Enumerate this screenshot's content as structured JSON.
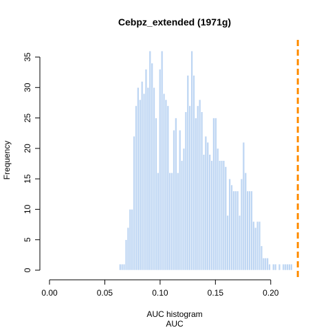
{
  "chart_data": {
    "type": "bar",
    "title": "Cebpz_extended (1971g)",
    "xlabel": "AUC histogram",
    "xlabel2": "AUC",
    "ylabel": "Frequency",
    "xlim": [
      0.0,
      0.225
    ],
    "ylim": [
      0,
      36
    ],
    "x_ticks": [
      "0.00",
      "0.05",
      "0.10",
      "0.15",
      "0.20"
    ],
    "x_tick_values": [
      0.0,
      0.05,
      0.1,
      0.15,
      0.2
    ],
    "y_ticks": [
      "0",
      "5",
      "10",
      "15",
      "20",
      "25",
      "30",
      "35"
    ],
    "y_tick_values": [
      0,
      5,
      10,
      15,
      20,
      25,
      30,
      35
    ],
    "bin_start": 0.0,
    "bin_width": 0.0018,
    "values": [
      0,
      0,
      0,
      0,
      0,
      0,
      0,
      0,
      0,
      0,
      0,
      0,
      0,
      0,
      0,
      0,
      0,
      0,
      0,
      0,
      0,
      0,
      0,
      0,
      0,
      0,
      0,
      0,
      0,
      0,
      0,
      0,
      0,
      0,
      0,
      1,
      1,
      1,
      5,
      7,
      10,
      10,
      22,
      27,
      30,
      28,
      31,
      29,
      33,
      30,
      36,
      34,
      30,
      25,
      16,
      33,
      36,
      29,
      28,
      27,
      16,
      16,
      23,
      25,
      16,
      23,
      18,
      20,
      26,
      32,
      27,
      36,
      32,
      25,
      27,
      28,
      26,
      19,
      22,
      21,
      19,
      18,
      25,
      25,
      20,
      18,
      18,
      18,
      17,
      9,
      15,
      14,
      13,
      13,
      13,
      9,
      15,
      21,
      16,
      13,
      13,
      13,
      8,
      7,
      8,
      8,
      4,
      2,
      2,
      2,
      1,
      0,
      1,
      1,
      0,
      1,
      0,
      1,
      1,
      1,
      1,
      1,
      0,
      0,
      0,
      0,
      0,
      0,
      0,
      0,
      0,
      0,
      0,
      0,
      0,
      0,
      0,
      0,
      0,
      0,
      0,
      0,
      0,
      0,
      0,
      0,
      0,
      0,
      0,
      0,
      0,
      0,
      0,
      0,
      0,
      0,
      0,
      0,
      0,
      0,
      0,
      0,
      0,
      0,
      0,
      0,
      0,
      0,
      0,
      0,
      0,
      0,
      0,
      0,
      0,
      0,
      0,
      0,
      0,
      0,
      0,
      0,
      0,
      0,
      0,
      0,
      0,
      0,
      0,
      0,
      0,
      0,
      0,
      0,
      0,
      0,
      0,
      0,
      0,
      0,
      0,
      0,
      0,
      0,
      0,
      0,
      0,
      0,
      0,
      0,
      0,
      0,
      0,
      0,
      0,
      0,
      0,
      0,
      0,
      0,
      0,
      0,
      0,
      0,
      0,
      0,
      0,
      0,
      0,
      0,
      0,
      0,
      0,
      0,
      0,
      0,
      0,
      0,
      0,
      0,
      0,
      0,
      0,
      0,
      0,
      0,
      0,
      0,
      0,
      0
    ],
    "reference_line": {
      "x": 0.2245,
      "color": "#ff8c00",
      "style": "dashed"
    },
    "bar_color": "#bed6f3",
    "grid": false,
    "legend": "none"
  }
}
